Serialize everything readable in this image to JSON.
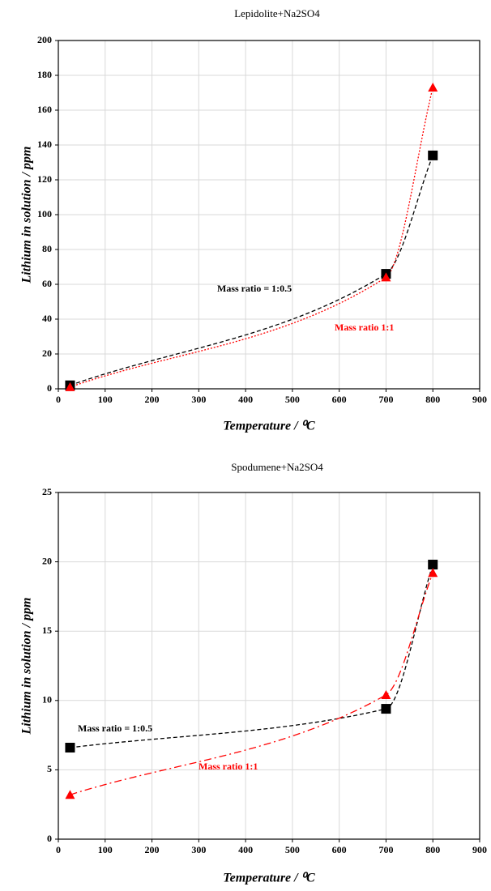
{
  "chart_data": [
    {
      "type": "line",
      "title": "Lepidolite+Na2SO4",
      "x_label": "Temperature / ⁰C",
      "y_label": "Lithium in solution / ppm",
      "xlim": [
        0,
        900
      ],
      "xticks": [
        0,
        100,
        200,
        300,
        400,
        500,
        600,
        700,
        800,
        900
      ],
      "ylim": [
        0,
        200
      ],
      "yticks": [
        0,
        20,
        40,
        60,
        80,
        100,
        120,
        140,
        160,
        180,
        200
      ],
      "grid": true,
      "series": [
        {
          "name": "Mass ratio = 1:0.5",
          "color": "#000000",
          "line_style": "dashed",
          "marker": "square",
          "x": [
            25,
            700,
            800
          ],
          "values": [
            2,
            66,
            134
          ]
        },
        {
          "name": "Mass ratio 1:1",
          "color": "#ff0000",
          "line_style": "dotted",
          "marker": "triangle",
          "x": [
            25,
            700,
            800
          ],
          "values": [
            1,
            64,
            173
          ]
        }
      ]
    },
    {
      "type": "line",
      "title": "Spodumene+Na2SO4",
      "x_label": "Temperature / ⁰C",
      "y_label": "Lithium in solution / ppm",
      "xlim": [
        0,
        900
      ],
      "xticks": [
        0,
        100,
        200,
        300,
        400,
        500,
        600,
        700,
        800,
        900
      ],
      "ylim": [
        0,
        25
      ],
      "yticks": [
        0,
        5,
        10,
        15,
        20,
        25
      ],
      "grid": true,
      "series": [
        {
          "name": "Mass ratio = 1:0.5",
          "color": "#000000",
          "line_style": "dashed",
          "marker": "square",
          "x": [
            25,
            700,
            800
          ],
          "values": [
            6.6,
            9.4,
            19.8
          ]
        },
        {
          "name": "Mass ratio 1:1",
          "color": "#ff0000",
          "line_style": "dashdot",
          "marker": "triangle",
          "x": [
            25,
            700,
            800
          ],
          "values": [
            3.2,
            10.4,
            19.2
          ]
        }
      ]
    }
  ]
}
